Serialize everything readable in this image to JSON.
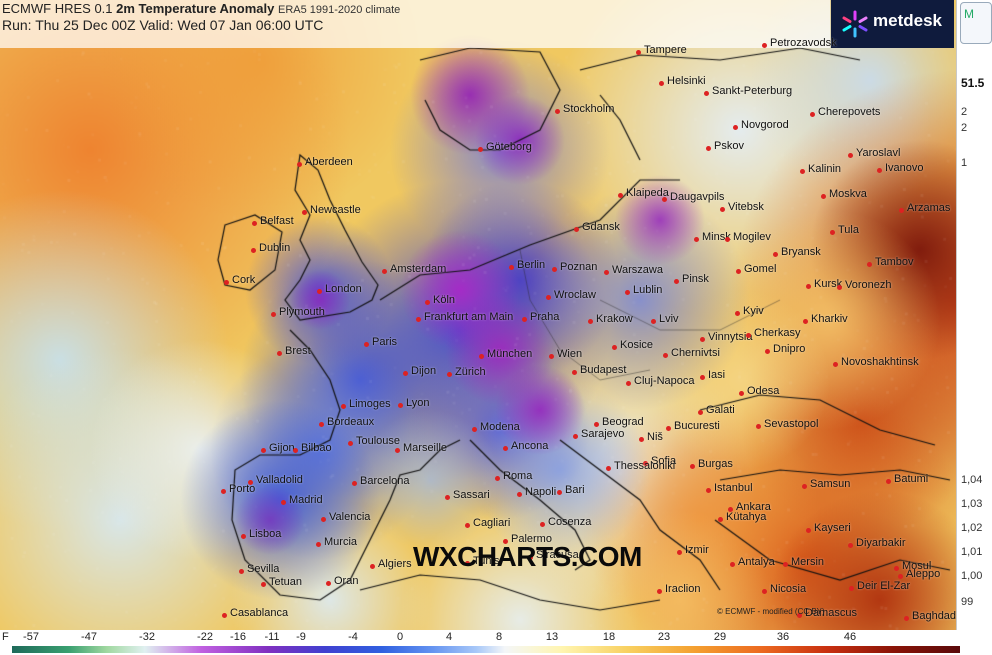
{
  "header": {
    "model": "ECMWF HRES 0.1",
    "variable": "2m Temperature Anomaly",
    "climate": "ERA5 1991-2020 climate",
    "run": "Run: Thu 25 Dec 00Z Valid: Wed 07 Jan 06:00 UTC"
  },
  "brand": {
    "name": "metdesk",
    "icon": "snowflake-icon"
  },
  "watermark": "WXCHARTS.COM",
  "copyright": "© ECMWF - modified (CC BY)",
  "sidebar": {
    "tab_label": "M",
    "value": "51.5",
    "texts": [
      "2",
      "2",
      "1"
    ],
    "scale": [
      "1,04",
      "1,03",
      "1,02",
      "1,01",
      "1,00",
      "99"
    ]
  },
  "legend": {
    "unit": "F",
    "labels": [
      "-57",
      "-47",
      "-32",
      "-22",
      "-16",
      "-11",
      "-9",
      "-4",
      "0",
      "4",
      "8",
      "13",
      "18",
      "23",
      "29",
      "36",
      "46"
    ]
  },
  "cities": [
    "Tampere",
    "Petrozavodsk",
    "Helsinki",
    "Sankt-Peterburg",
    "Stockholm",
    "Novgorod",
    "Cherepovets",
    "Aberdeen",
    "Göteborg",
    "Pskov",
    "Yaroslavl",
    "Ivanovo",
    "Kalinin",
    "Klaipeda",
    "Daugavpils",
    "Moskva",
    "Newcastle",
    "Vitebsk",
    "Arzamas",
    "Belfast",
    "Gdansk",
    "Minsk",
    "Mogilev",
    "Tula",
    "Dublin",
    "Bryansk",
    "Tambov",
    "Amsterdam",
    "Berlin",
    "Poznan",
    "Warszawa",
    "Gomel",
    "Cork",
    "Plymouth",
    "London",
    "Köln",
    "Wroclaw",
    "Lublin",
    "Pinsk",
    "Kursk",
    "Voronezh",
    "Frankfurt am Main",
    "Praha",
    "Krakow",
    "Lviv",
    "Kyiv",
    "Kharkiv",
    "Paris",
    "Brest",
    "München",
    "Vinnytsia",
    "Cherkasy",
    "Dnipro",
    "Wien",
    "Kosice",
    "Chernivtsi",
    "Novoshakhtinsk",
    "Dijon",
    "Zürich",
    "Budapest",
    "Cluj-Napoca",
    "Iasi",
    "Limoges",
    "Lyon",
    "Odesa",
    "Galati",
    "Bordeaux",
    "Beograd",
    "Bucuresti",
    "Sevastopol",
    "Gijon",
    "Bilbao",
    "Toulouse",
    "Marseille",
    "Modena",
    "Ancona",
    "Sarajevo",
    "Niš",
    "Burgas",
    "Sofia",
    "Valladolid",
    "Barcelona",
    "Roma",
    "Bari",
    "Istanbul",
    "Samsun",
    "Batumi",
    "Porto",
    "Madrid",
    "Sassari",
    "Napoli",
    "Thessaloniki",
    "Ankara",
    "Valencia",
    "Cosenza",
    "Kütahya",
    "Kayseri",
    "Diyarbakir",
    "Lisboa",
    "Murcia",
    "Cagliari",
    "Palermo",
    "Siracusa",
    "Izmir",
    "Antalya",
    "Mersin",
    "Mosul",
    "Sevilla",
    "Algiers",
    "Tunis",
    "Oran",
    "Tetuan",
    "Casablanca",
    "Iraclion",
    "Nicosia",
    "Deir El-Zar",
    "Damascus",
    "Baghdad",
    "Aleppo"
  ]
}
